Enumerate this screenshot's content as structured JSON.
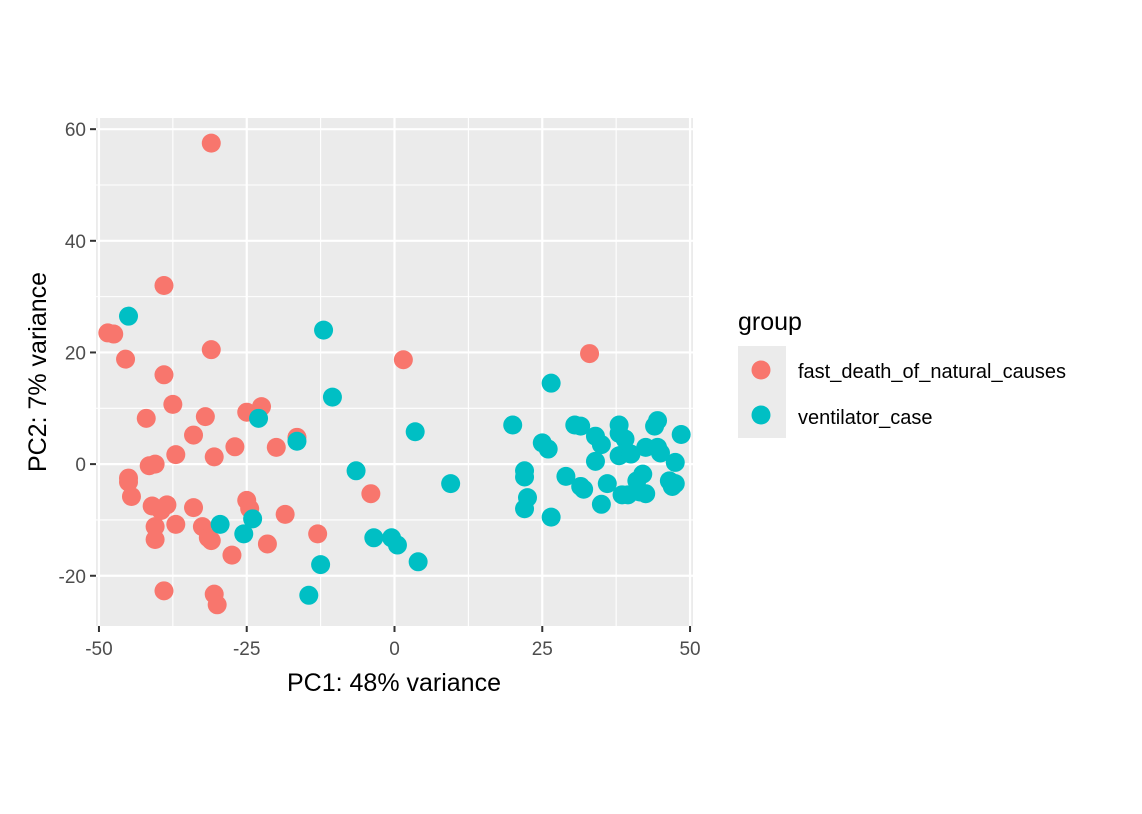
{
  "chart_data": {
    "type": "scatter",
    "title": "",
    "xlabel": "PC1: 48% variance",
    "ylabel": "PC2: 7% variance",
    "xlim": [
      -50.5,
      50.5
    ],
    "ylim": [
      -29,
      62
    ],
    "x_ticks": [
      -50,
      -25,
      0,
      25,
      50
    ],
    "x_tick_labels": [
      "-50",
      "-25",
      "0",
      "25",
      "50"
    ],
    "y_ticks": [
      -20,
      0,
      20,
      40,
      60
    ],
    "y_tick_labels": [
      "-20",
      "0",
      "20",
      "40",
      "60"
    ],
    "grid": true,
    "legend": {
      "title": "group",
      "placement": "right"
    },
    "series": [
      {
        "name": "fast_death_of_natural_causes",
        "color": "#F8766D",
        "points": [
          [
            -31,
            57.5
          ],
          [
            -39,
            32
          ],
          [
            -48.5,
            23.5
          ],
          [
            -47.5,
            23.3
          ],
          [
            -45.5,
            18.8
          ],
          [
            -31,
            20.5
          ],
          [
            -39,
            16
          ],
          [
            -42,
            8.2
          ],
          [
            -37.5,
            10.7
          ],
          [
            -32,
            8.5
          ],
          [
            -34,
            5.2
          ],
          [
            -37,
            1.7
          ],
          [
            -30.5,
            1.3
          ],
          [
            -27,
            3.1
          ],
          [
            -25,
            9.3
          ],
          [
            -22.5,
            10.3
          ],
          [
            -16.5,
            4.8
          ],
          [
            -20,
            3
          ],
          [
            -41.5,
            -0.3
          ],
          [
            -40.5,
            0
          ],
          [
            -45,
            -2.5
          ],
          [
            -45,
            -3.2
          ],
          [
            -44.5,
            -5.8
          ],
          [
            -41,
            -7.5
          ],
          [
            -38.5,
            -7.3
          ],
          [
            -39.5,
            -8.3
          ],
          [
            -34,
            -7.8
          ],
          [
            -37,
            -10.8
          ],
          [
            -40.5,
            -11.2
          ],
          [
            -40.5,
            -13.5
          ],
          [
            -32.5,
            -11.2
          ],
          [
            -31.5,
            -13.2
          ],
          [
            -31,
            -13.7
          ],
          [
            -25,
            -6.5
          ],
          [
            -24.5,
            -8
          ],
          [
            -27.5,
            -16.3
          ],
          [
            -21.5,
            -14.3
          ],
          [
            -18.5,
            -9
          ],
          [
            -13,
            -12.5
          ],
          [
            -39,
            -22.7
          ],
          [
            -30.5,
            -23.3
          ],
          [
            -30,
            -25.2
          ],
          [
            1.5,
            18.7
          ],
          [
            -4,
            -5.3
          ],
          [
            33,
            19.8
          ]
        ]
      },
      {
        "name": "ventilator_case",
        "color": "#00BFC4",
        "points": [
          [
            -45,
            26.5
          ],
          [
            -12,
            24
          ],
          [
            -10.5,
            12
          ],
          [
            -23,
            8.2
          ],
          [
            -16.5,
            4.1
          ],
          [
            -6.5,
            -1.2
          ],
          [
            3.5,
            5.8
          ],
          [
            9.5,
            -3.5
          ],
          [
            -29.5,
            -10.8
          ],
          [
            -24,
            -9.8
          ],
          [
            -25.5,
            -12.5
          ],
          [
            -3.5,
            -13.2
          ],
          [
            -0.5,
            -13.2
          ],
          [
            0.5,
            -14.5
          ],
          [
            4,
            -17.5
          ],
          [
            -12.5,
            -18
          ],
          [
            -14.5,
            -23.5
          ],
          [
            26.5,
            14.5
          ],
          [
            20,
            7
          ],
          [
            25,
            3.8
          ],
          [
            26,
            2.7
          ],
          [
            22,
            -1.2
          ],
          [
            22,
            -2.3
          ],
          [
            22.5,
            -6
          ],
          [
            22,
            -8
          ],
          [
            26.5,
            -9.5
          ],
          [
            29,
            -2.2
          ],
          [
            31.5,
            -4
          ],
          [
            32,
            -4.5
          ],
          [
            30.5,
            7
          ],
          [
            31.5,
            6.8
          ],
          [
            34,
            5
          ],
          [
            35,
            3.5
          ],
          [
            34,
            0.5
          ],
          [
            36,
            -3.5
          ],
          [
            35,
            -7.2
          ],
          [
            38,
            7
          ],
          [
            38,
            5.5
          ],
          [
            39,
            4.5
          ],
          [
            38,
            1.5
          ],
          [
            39,
            2
          ],
          [
            40,
            1.8
          ],
          [
            38.5,
            -5.5
          ],
          [
            39.5,
            -5.5
          ],
          [
            41,
            -3
          ],
          [
            41.5,
            -5
          ],
          [
            42,
            -1.8
          ],
          [
            42.5,
            -5.3
          ],
          [
            42.5,
            3
          ],
          [
            44.5,
            7.8
          ],
          [
            44,
            6.8
          ],
          [
            44.5,
            3
          ],
          [
            45,
            2
          ],
          [
            46.5,
            -3
          ],
          [
            47,
            -4
          ],
          [
            47.5,
            -3.5
          ],
          [
            47.5,
            0.3
          ],
          [
            48.5,
            5.3
          ]
        ]
      }
    ]
  }
}
